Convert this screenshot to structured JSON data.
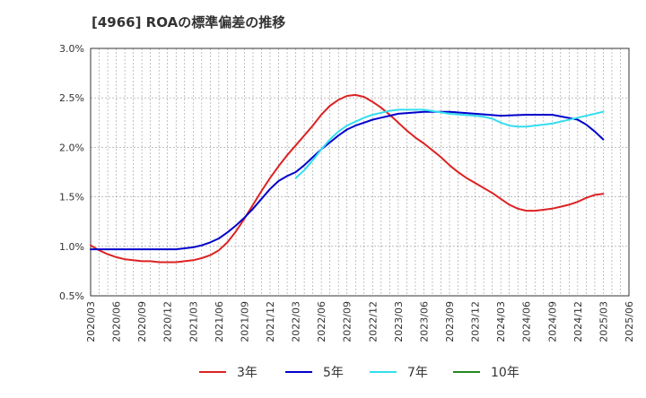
{
  "chart_data": {
    "type": "line",
    "title": "[4966]  ROAの標準偏差の推移",
    "xlabel": "",
    "ylabel": "",
    "ylim": [
      0.5,
      3.0
    ],
    "y_ticks": [
      "0.5%",
      "1.0%",
      "1.5%",
      "2.0%",
      "2.5%",
      "3.0%"
    ],
    "x_ticks": [
      "2020/03",
      "2020/06",
      "2020/09",
      "2020/12",
      "2021/03",
      "2021/06",
      "2021/09",
      "2021/12",
      "2022/03",
      "2022/06",
      "2022/09",
      "2022/12",
      "2023/03",
      "2023/06",
      "2023/09",
      "2023/12",
      "2024/03",
      "2024/06",
      "2024/09",
      "2024/12",
      "2025/03",
      "2025/06"
    ],
    "grid": true,
    "legend_position": "bottom",
    "colors": {
      "3年": "#dd2222",
      "5年": "#0000cc",
      "7年": "#33ddee",
      "10年": "#228822"
    },
    "series": [
      {
        "name": "3年",
        "color": "#dd2222",
        "points": [
          [
            "2020/03",
            1.01
          ],
          [
            "2020/04",
            0.96
          ],
          [
            "2020/05",
            0.92
          ],
          [
            "2020/06",
            0.89
          ],
          [
            "2020/07",
            0.87
          ],
          [
            "2020/08",
            0.86
          ],
          [
            "2020/09",
            0.85
          ],
          [
            "2020/10",
            0.85
          ],
          [
            "2020/11",
            0.84
          ],
          [
            "2020/12",
            0.84
          ],
          [
            "2021/01",
            0.84
          ],
          [
            "2021/02",
            0.85
          ],
          [
            "2021/03",
            0.86
          ],
          [
            "2021/04",
            0.88
          ],
          [
            "2021/05",
            0.91
          ],
          [
            "2021/06",
            0.96
          ],
          [
            "2021/07",
            1.04
          ],
          [
            "2021/08",
            1.15
          ],
          [
            "2021/09",
            1.28
          ],
          [
            "2021/10",
            1.42
          ],
          [
            "2021/11",
            1.56
          ],
          [
            "2021/12",
            1.69
          ],
          [
            "2022/01",
            1.81
          ],
          [
            "2022/02",
            1.92
          ],
          [
            "2022/03",
            2.02
          ],
          [
            "2022/04",
            2.12
          ],
          [
            "2022/05",
            2.22
          ],
          [
            "2022/06",
            2.33
          ],
          [
            "2022/07",
            2.42
          ],
          [
            "2022/08",
            2.48
          ],
          [
            "2022/09",
            2.52
          ],
          [
            "2022/10",
            2.53
          ],
          [
            "2022/11",
            2.51
          ],
          [
            "2022/12",
            2.46
          ],
          [
            "2023/01",
            2.4
          ],
          [
            "2023/02",
            2.33
          ],
          [
            "2023/03",
            2.25
          ],
          [
            "2023/04",
            2.17
          ],
          [
            "2023/05",
            2.1
          ],
          [
            "2023/06",
            2.04
          ],
          [
            "2023/07",
            1.97
          ],
          [
            "2023/08",
            1.9
          ],
          [
            "2023/09",
            1.82
          ],
          [
            "2023/10",
            1.75
          ],
          [
            "2023/11",
            1.69
          ],
          [
            "2023/12",
            1.64
          ],
          [
            "2024/01",
            1.59
          ],
          [
            "2024/02",
            1.54
          ],
          [
            "2024/03",
            1.48
          ],
          [
            "2024/04",
            1.42
          ],
          [
            "2024/05",
            1.38
          ],
          [
            "2024/06",
            1.36
          ],
          [
            "2024/07",
            1.36
          ],
          [
            "2024/08",
            1.37
          ],
          [
            "2024/09",
            1.38
          ],
          [
            "2024/10",
            1.4
          ],
          [
            "2024/11",
            1.42
          ],
          [
            "2024/12",
            1.45
          ],
          [
            "2025/01",
            1.49
          ],
          [
            "2025/02",
            1.52
          ],
          [
            "2025/03",
            1.53
          ]
        ]
      },
      {
        "name": "5年",
        "color": "#0000cc",
        "points": [
          [
            "2020/03",
            0.97
          ],
          [
            "2020/06",
            0.97
          ],
          [
            "2020/09",
            0.97
          ],
          [
            "2020/12",
            0.97
          ],
          [
            "2021/01",
            0.97
          ],
          [
            "2021/02",
            0.98
          ],
          [
            "2021/03",
            0.99
          ],
          [
            "2021/04",
            1.01
          ],
          [
            "2021/05",
            1.04
          ],
          [
            "2021/06",
            1.08
          ],
          [
            "2021/07",
            1.14
          ],
          [
            "2021/08",
            1.21
          ],
          [
            "2021/09",
            1.29
          ],
          [
            "2021/10",
            1.38
          ],
          [
            "2021/11",
            1.48
          ],
          [
            "2021/12",
            1.58
          ],
          [
            "2022/01",
            1.66
          ],
          [
            "2022/02",
            1.71
          ],
          [
            "2022/03",
            1.75
          ],
          [
            "2022/04",
            1.82
          ],
          [
            "2022/05",
            1.9
          ],
          [
            "2022/06",
            1.98
          ],
          [
            "2022/07",
            2.05
          ],
          [
            "2022/08",
            2.12
          ],
          [
            "2022/09",
            2.18
          ],
          [
            "2022/10",
            2.22
          ],
          [
            "2022/11",
            2.25
          ],
          [
            "2022/12",
            2.28
          ],
          [
            "2023/01",
            2.3
          ],
          [
            "2023/02",
            2.32
          ],
          [
            "2023/03",
            2.34
          ],
          [
            "2023/06",
            2.36
          ],
          [
            "2023/09",
            2.36
          ],
          [
            "2023/12",
            2.34
          ],
          [
            "2024/03",
            2.32
          ],
          [
            "2024/06",
            2.33
          ],
          [
            "2024/09",
            2.33
          ],
          [
            "2024/12",
            2.28
          ],
          [
            "2025/01",
            2.23
          ],
          [
            "2025/02",
            2.16
          ],
          [
            "2025/03",
            2.08
          ]
        ]
      },
      {
        "name": "7年",
        "color": "#33ddee",
        "points": [
          [
            "2022/03",
            1.69
          ],
          [
            "2022/04",
            1.77
          ],
          [
            "2022/05",
            1.87
          ],
          [
            "2022/06",
            1.98
          ],
          [
            "2022/07",
            2.08
          ],
          [
            "2022/08",
            2.16
          ],
          [
            "2022/09",
            2.22
          ],
          [
            "2022/10",
            2.26
          ],
          [
            "2022/11",
            2.3
          ],
          [
            "2022/12",
            2.33
          ],
          [
            "2023/01",
            2.35
          ],
          [
            "2023/02",
            2.37
          ],
          [
            "2023/03",
            2.38
          ],
          [
            "2023/06",
            2.38
          ],
          [
            "2023/09",
            2.34
          ],
          [
            "2023/12",
            2.32
          ],
          [
            "2024/01",
            2.31
          ],
          [
            "2024/02",
            2.29
          ],
          [
            "2024/03",
            2.25
          ],
          [
            "2024/04",
            2.22
          ],
          [
            "2024/05",
            2.21
          ],
          [
            "2024/06",
            2.21
          ],
          [
            "2024/09",
            2.24
          ],
          [
            "2024/12",
            2.3
          ],
          [
            "2025/03",
            2.36
          ]
        ]
      },
      {
        "name": "10年",
        "color": "#228822",
        "points": []
      }
    ]
  }
}
